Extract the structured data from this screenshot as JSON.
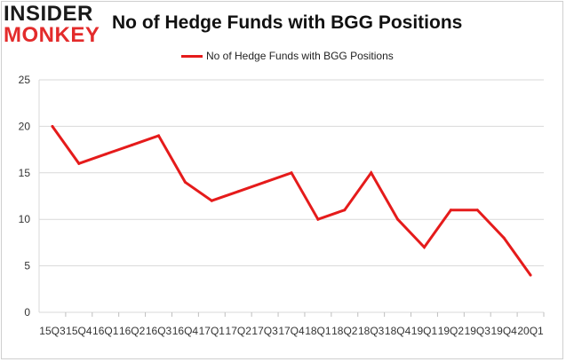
{
  "logo": {
    "line1": "INSIDER",
    "line2": "MONKEY"
  },
  "chart_data": {
    "type": "line",
    "title": "No of Hedge Funds with BGG Positions",
    "xlabel": "",
    "ylabel": "",
    "ylim": [
      0,
      25
    ],
    "yticks": [
      0,
      5,
      10,
      15,
      20,
      25
    ],
    "grid": true,
    "legend": "top",
    "categories": [
      "15Q3",
      "15Q4",
      "16Q1",
      "16Q2",
      "16Q3",
      "16Q4",
      "17Q1",
      "17Q2",
      "17Q3",
      "17Q4",
      "18Q1",
      "18Q2",
      "18Q3",
      "18Q4",
      "19Q1",
      "19Q2",
      "19Q3",
      "19Q4",
      "20Q1"
    ],
    "series": [
      {
        "name": "No of Hedge Funds with BGG Positions",
        "color": "#e51b1b",
        "values": [
          20,
          16,
          17,
          18,
          19,
          14,
          12,
          13,
          14,
          15,
          10,
          11,
          15,
          10,
          7,
          11,
          11,
          8,
          4
        ]
      }
    ]
  }
}
